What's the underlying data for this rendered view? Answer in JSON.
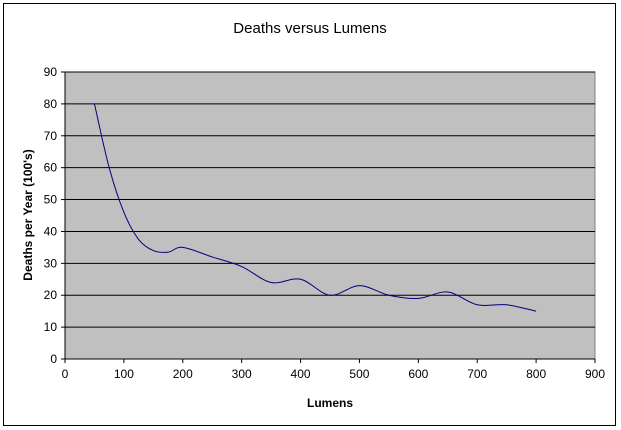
{
  "chart_data": {
    "type": "line",
    "title": "Deaths versus Lumens",
    "xlabel": "Lumens",
    "ylabel": "Deaths per Year (100's)",
    "xlim": [
      0,
      900
    ],
    "ylim": [
      0,
      90
    ],
    "x_ticks": [
      "0",
      "100",
      "200",
      "300",
      "400",
      "500",
      "600",
      "700",
      "800",
      "900"
    ],
    "y_ticks": [
      "0",
      "10",
      "20",
      "30",
      "40",
      "50",
      "60",
      "70",
      "80",
      "90"
    ],
    "grid": true,
    "legend": "none",
    "plot_background": "#C0C0C0",
    "series": [
      {
        "color": "#000080",
        "x": [
          50,
          75,
          100,
          125,
          150,
          175,
          200,
          250,
          300,
          350,
          400,
          450,
          500,
          550,
          600,
          650,
          700,
          750,
          800
        ],
        "y": [
          80,
          60,
          46,
          37.5,
          34,
          33.5,
          35,
          32,
          29,
          24,
          25,
          20,
          23,
          20,
          19,
          21,
          17,
          17,
          15
        ]
      }
    ]
  }
}
